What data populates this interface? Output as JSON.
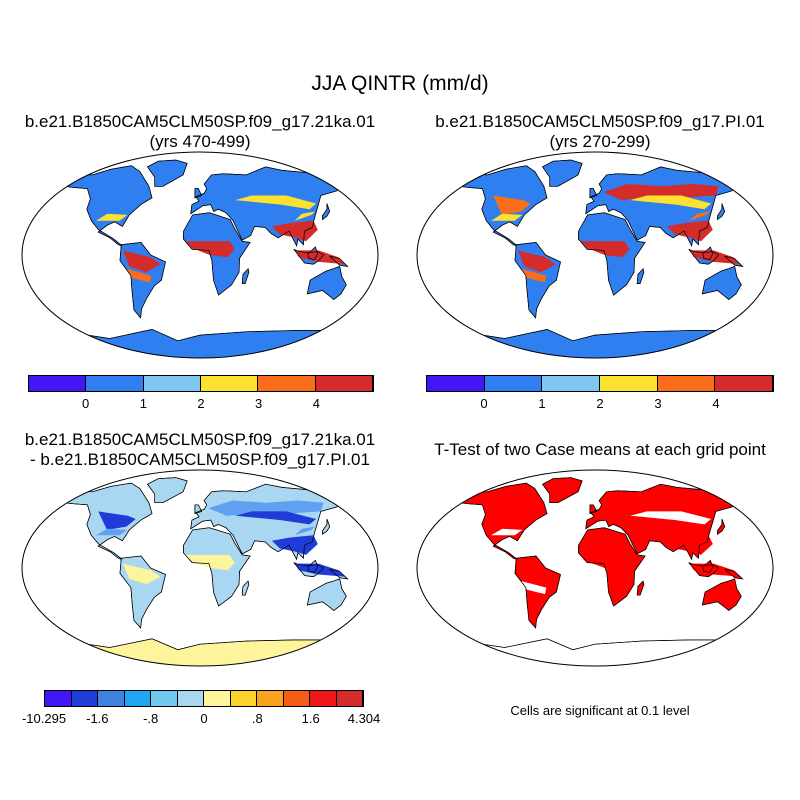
{
  "title": "JJA QINTR (mm/d)",
  "panels": [
    {
      "title_line1": "b.e21.B1850CAM5CLM50SP.f09_g17.21ka.01",
      "title_line2": "(yrs 470-499)",
      "regions": {
        "ocean": "#ffffff",
        "land": "#2f7ff0",
        "antarctica": "#2f7ff0",
        "tropics": "#d42b2b",
        "tropics_edge": "#fa6d1a",
        "monsoon": "#d42b2b",
        "monsoon_edge": "#fbe22f",
        "boreal": "#2f7ff0",
        "boreal_edge": "#fbe22f",
        "n_america": "#2f7ff0",
        "n_america_edge": "#fbe22f"
      }
    },
    {
      "title_line1": "b.e21.B1850CAM5CLM50SP.f09_g17.PI.01",
      "title_line2": "(yrs 270-299)",
      "regions": {
        "ocean": "#ffffff",
        "land": "#2f7ff0",
        "antarctica": "#2f7ff0",
        "tropics": "#d42b2b",
        "tropics_edge": "#fa6d1a",
        "monsoon": "#d42b2b",
        "monsoon_edge": "#fa6d1a",
        "boreal": "#d42b2b",
        "boreal_edge": "#fbe22f",
        "n_america": "#fa6d1a",
        "n_america_edge": "#fbe22f"
      }
    },
    {
      "title_line1": "b.e21.B1850CAM5CLM50SP.f09_g17.21ka.01",
      "title_line2": "- b.e21.B1850CAM5CLM50SP.f09_g17.PI.01",
      "regions": {
        "ocean": "#ffffff",
        "land": "#a9d6f0",
        "antarctica": "#fdf49b",
        "tropics": "#fdf49b",
        "tropics_edge": "#a9d6f0",
        "monsoon": "#1f3bd8",
        "monsoon_edge": "#5fa0f0",
        "boreal": "#5fa0f0",
        "boreal_edge": "#1f3bd8",
        "n_america": "#1f3bd8",
        "n_america_edge": "#5fa0f0"
      }
    },
    {
      "title_line1": "T-Test of two Case means at each grid point",
      "title_line2": "",
      "regions": {
        "ocean": "#ffffff",
        "land": "#ff0000",
        "antarctica": "#ffffff",
        "tropics": "#ff0000",
        "tropics_edge": "#ffffff",
        "monsoon": "#ff0000",
        "monsoon_edge": "#ff0000",
        "boreal": "#ff0000",
        "boreal_edge": "#ffffff",
        "n_america": "#ff0000",
        "n_america_edge": "#ffffff"
      }
    }
  ],
  "colorbars": [
    {
      "colors": [
        "#4316f5",
        "#2f7ff0",
        "#7ec8f0",
        "#fbe22f",
        "#fa6d1a",
        "#d42b2b"
      ],
      "labels": [
        "0",
        "1",
        "2",
        "3",
        "4"
      ]
    },
    {
      "colors": [
        "#4316f5",
        "#2f7ff0",
        "#7ec8f0",
        "#fbe22f",
        "#fa6d1a",
        "#d42b2b"
      ],
      "labels": [
        "0",
        "1",
        "2",
        "3",
        "4"
      ]
    },
    {
      "colors": [
        "#4316f5",
        "#1f3bd8",
        "#3f82e0",
        "#1fa6f0",
        "#70c8f0",
        "#a9d6f0",
        "#fdf49b",
        "#fdd22a",
        "#f9a21e",
        "#f65c18",
        "#ee1616",
        "#d42b2b"
      ],
      "labels": [
        "-10.295",
        "-1.6",
        "-.8",
        "0",
        ".8",
        "1.6",
        "4.304"
      ]
    }
  ],
  "note": "Cells are significant at 0.1 level"
}
